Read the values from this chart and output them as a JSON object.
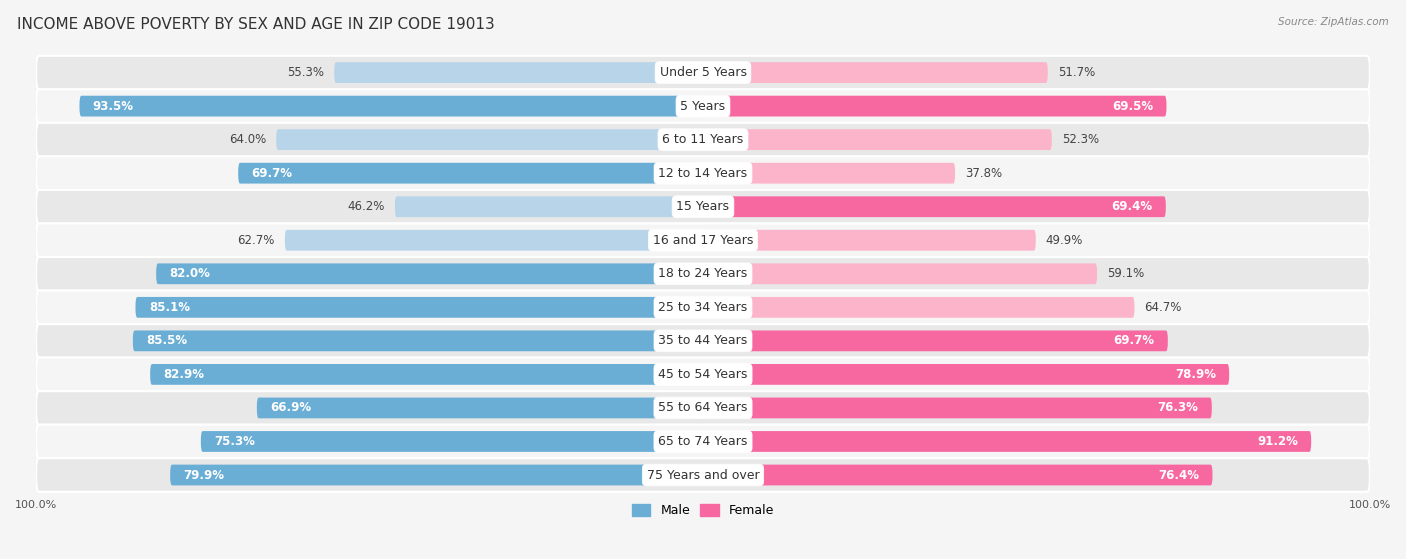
{
  "title": "INCOME ABOVE POVERTY BY SEX AND AGE IN ZIP CODE 19013",
  "source": "Source: ZipAtlas.com",
  "categories": [
    "Under 5 Years",
    "5 Years",
    "6 to 11 Years",
    "12 to 14 Years",
    "15 Years",
    "16 and 17 Years",
    "18 to 24 Years",
    "25 to 34 Years",
    "35 to 44 Years",
    "45 to 54 Years",
    "55 to 64 Years",
    "65 to 74 Years",
    "75 Years and over"
  ],
  "male": [
    55.3,
    93.5,
    64.0,
    69.7,
    46.2,
    62.7,
    82.0,
    85.1,
    85.5,
    82.9,
    66.9,
    75.3,
    79.9
  ],
  "female": [
    51.7,
    69.5,
    52.3,
    37.8,
    69.4,
    49.9,
    59.1,
    64.7,
    69.7,
    78.9,
    76.3,
    91.2,
    76.4
  ],
  "male_color_full": "#6aaed6",
  "male_color_light": "#b8d4e8",
  "female_color_full": "#f768a1",
  "female_color_light": "#fbb4c9",
  "male_label": "Male",
  "female_label": "Female",
  "background_color": "#f5f5f5",
  "row_alt_color": "#e8e8e8",
  "row_base_color": "#f5f5f5",
  "title_fontsize": 11,
  "label_fontsize": 9,
  "value_fontsize": 8.5,
  "max_val": 100.0,
  "axis_label_fontsize": 8,
  "threshold_white_text": 65
}
